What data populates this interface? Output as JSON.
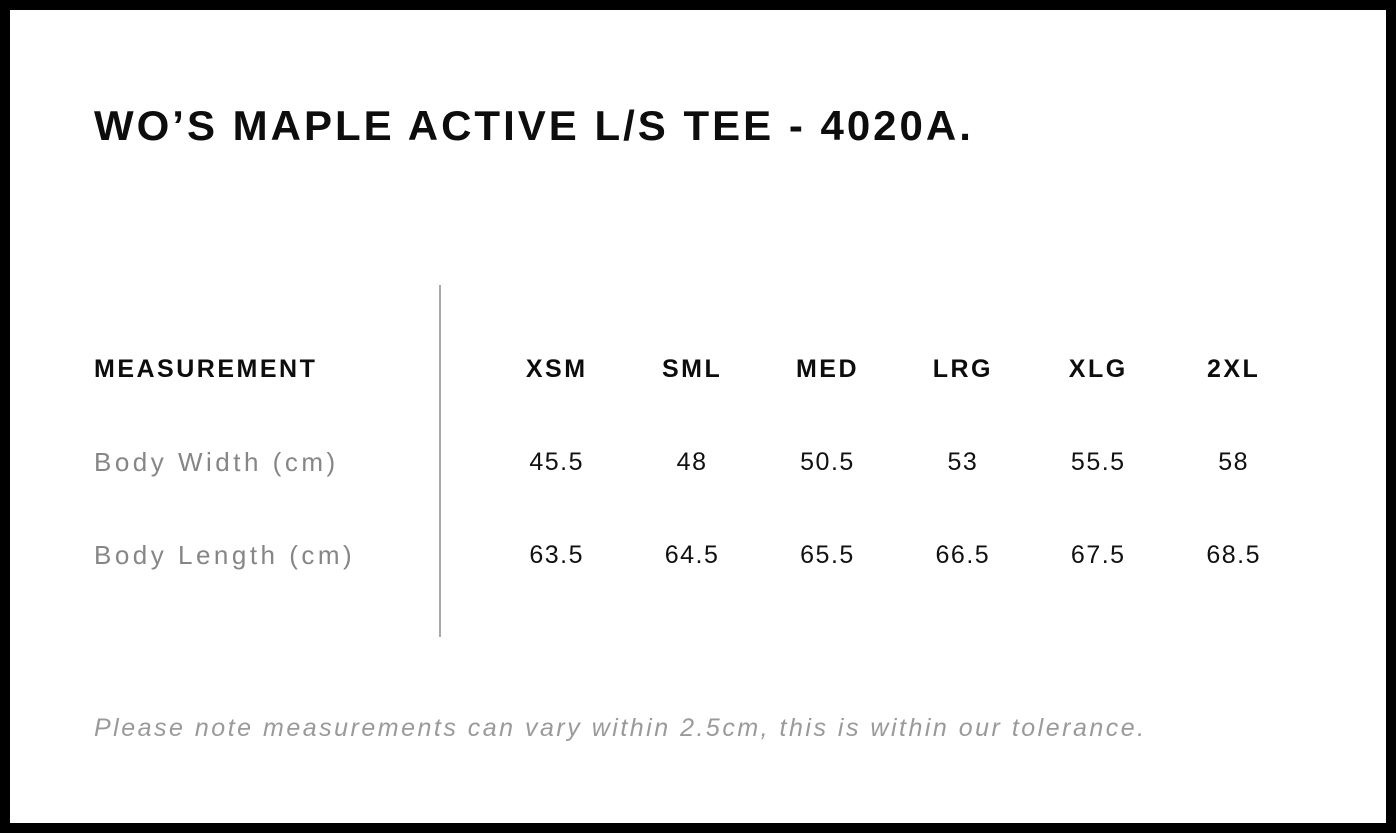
{
  "chart_data": {
    "type": "table",
    "title": "WO’S MAPLE ACTIVE L/S TEE - 4020A.",
    "columns": [
      "MEASUREMENT",
      "XSM",
      "SML",
      "MED",
      "LRG",
      "XLG",
      "2XL"
    ],
    "rows": [
      {
        "label": "Body Width (cm)",
        "values": [
          "45.5",
          "48",
          "50.5",
          "53",
          "55.5",
          "58"
        ]
      },
      {
        "label": "Body Length (cm)",
        "values": [
          "63.5",
          "64.5",
          "65.5",
          "66.5",
          "67.5",
          "68.5"
        ]
      }
    ],
    "footnote": "Please note measurements can vary within 2.5cm, this is within our tolerance."
  },
  "colors": {
    "heading_text": "#0d0d0d",
    "value_text": "#111111",
    "row_label_gray": "#868686",
    "note_gray": "#9a9a9a",
    "divider_gray": "#a8a8a8",
    "frame_black": "#000000",
    "background": "#ffffff"
  }
}
